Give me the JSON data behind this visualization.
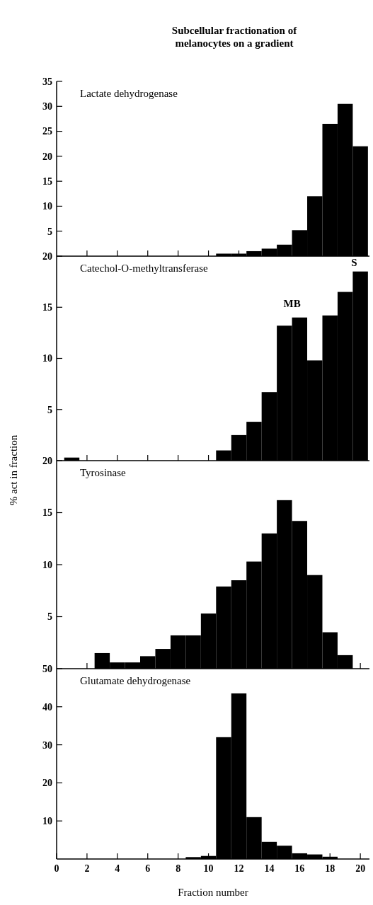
{
  "chart_data": [
    {
      "type": "histogram",
      "title": "Lactate dehydrogenase",
      "annotations": [
        "Subcellular fractionation of",
        "melanocytes on a gradient"
      ],
      "bins": [
        0.5,
        1.5,
        2.5,
        3.5,
        4.5,
        5.5,
        6.5,
        7.5,
        8.5,
        9.5,
        10.5,
        11.5,
        12.5,
        13.5,
        14.5,
        15.5,
        16.5,
        17.5,
        18.5,
        19.5,
        20.5
      ],
      "values": [
        0,
        0,
        0,
        0,
        0,
        0,
        0,
        0,
        0,
        0,
        0.5,
        0.5,
        1,
        1.5,
        2.3,
        5.2,
        12,
        26.5,
        30.5,
        22
      ],
      "color": "#000000",
      "xlim": [
        0,
        20.6
      ],
      "xticks": [
        {
          "value": 2,
          "label": null
        },
        {
          "value": 4,
          "label": null
        },
        {
          "value": 6,
          "label": null
        },
        {
          "value": 8,
          "label": null
        },
        {
          "value": 10,
          "label": null
        },
        {
          "value": 12,
          "label": null
        },
        {
          "value": 14,
          "label": null
        }
      ],
      "ylim": [
        0,
        35
      ],
      "yticks": [
        5,
        10,
        15,
        20,
        25,
        30,
        35
      ],
      "tick_labels": "y"
    },
    {
      "type": "histogram",
      "title": "Catechol-O-methyltransferase",
      "ylabel": "% act in fraction",
      "annotations": [
        "MB",
        "S"
      ],
      "bins": [
        0.5,
        1.5,
        2.5,
        3.5,
        4.5,
        5.5,
        6.5,
        7.5,
        8.5,
        9.5,
        10.5,
        11.5,
        12.5,
        13.5,
        14.5,
        15.5,
        16.5,
        17.5,
        18.5,
        19.5,
        20.5
      ],
      "values": [
        0.3,
        0,
        0,
        0,
        0,
        0,
        0,
        0,
        0,
        0,
        1,
        2.5,
        3.8,
        6.7,
        13.2,
        14,
        9.8,
        14.2,
        16.5,
        18.5
      ],
      "color": "#000000",
      "xlim": [
        0,
        20.6
      ],
      "xticks": [
        {
          "value": 2,
          "label": null
        },
        {
          "value": 4,
          "label": null
        },
        {
          "value": 6,
          "label": null
        },
        {
          "value": 8,
          "label": null
        },
        {
          "value": 10,
          "label": null
        }
      ],
      "ylim": [
        0,
        20
      ],
      "yticks": [
        5,
        10,
        15,
        20
      ],
      "tick_labels": "y"
    },
    {
      "type": "histogram",
      "title": "Tyrosinase",
      "bins": [
        0.5,
        1.5,
        2.5,
        3.5,
        4.5,
        5.5,
        6.5,
        7.5,
        8.5,
        9.5,
        10.5,
        11.5,
        12.5,
        13.5,
        14.5,
        15.5,
        16.5,
        17.5,
        18.5,
        19.5,
        20.5
      ],
      "values": [
        0,
        0,
        1.5,
        0.6,
        0.6,
        1.2,
        1.9,
        3.2,
        3.2,
        5.3,
        7.9,
        8.5,
        10.3,
        13,
        16.2,
        14.2,
        9,
        3.5,
        1.3,
        0
      ],
      "color": "#000000",
      "xlim": [
        0,
        20.6
      ],
      "xticks": [
        {
          "value": 2,
          "label": null
        },
        {
          "value": 4,
          "label": null
        },
        {
          "value": 20,
          "label": null
        }
      ],
      "ylim": [
        0,
        20
      ],
      "yticks": [
        5,
        10,
        15,
        20
      ],
      "tick_labels": "y"
    },
    {
      "type": "histogram",
      "title": "Glutamate dehydrogenase",
      "xlabel": "Fraction number",
      "bins": [
        0.5,
        1.5,
        2.5,
        3.5,
        4.5,
        5.5,
        6.5,
        7.5,
        8.5,
        9.5,
        10.5,
        11.5,
        12.5,
        13.5,
        14.5,
        15.5,
        16.5,
        17.5,
        18.5,
        19.5,
        20.5
      ],
      "values": [
        0,
        0,
        0,
        0,
        0,
        0,
        0,
        0,
        0.5,
        0.8,
        32,
        43.5,
        11,
        4.5,
        3.5,
        1.5,
        1.2,
        0.6,
        0,
        0
      ],
      "color": "#000000",
      "xlim": [
        0,
        20.6
      ],
      "xticks": [
        0,
        2,
        4,
        6,
        8,
        10,
        12,
        14,
        16,
        18,
        20
      ],
      "ylim": [
        0,
        50
      ],
      "yticks": [
        10,
        20,
        30,
        40,
        50
      ]
    }
  ]
}
